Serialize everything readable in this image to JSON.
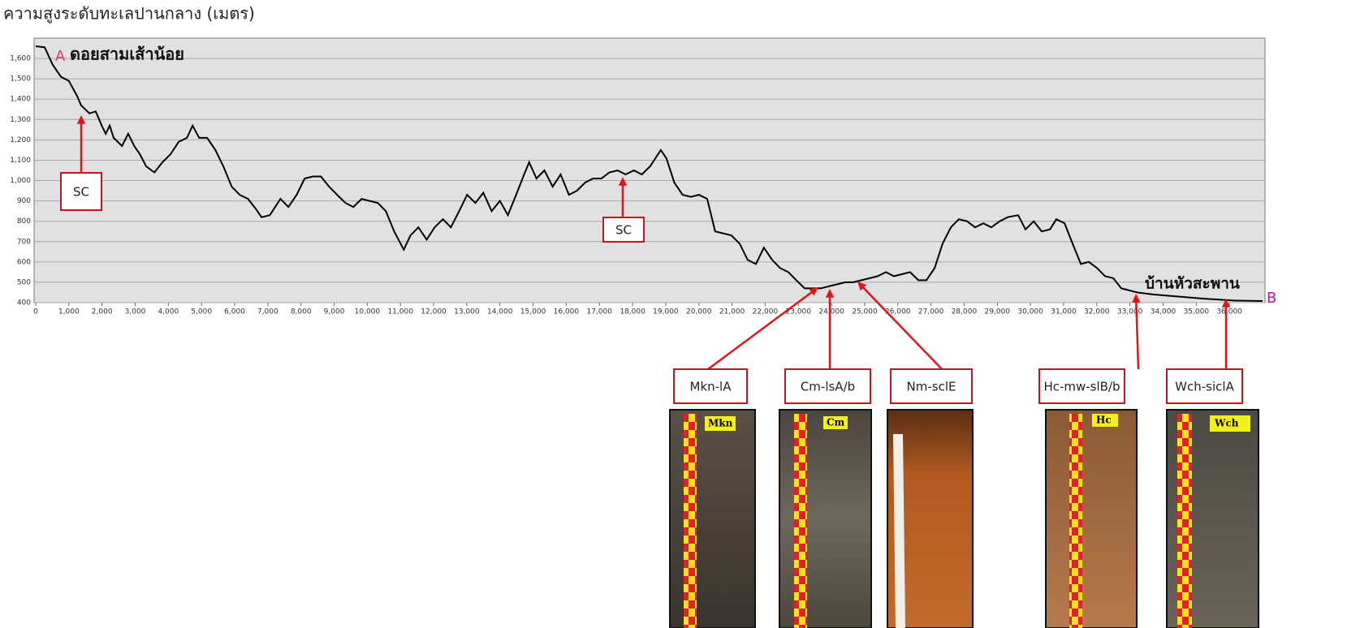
{
  "chart_data": {
    "type": "line",
    "title": "ความสูงระดับทะเลปานกลาง (เมตร)",
    "color": "#000000",
    "grid": true,
    "x": [
      0,
      270,
      510,
      760,
      1000,
      1250,
      1370,
      1620,
      1810,
      1990,
      2110,
      2230,
      2350,
      2600,
      2790,
      2970,
      3140,
      3330,
      3580,
      3820,
      4070,
      4310,
      4560,
      4730,
      4930,
      5170,
      5420,
      5660,
      5910,
      6150,
      6400,
      6640,
      6810,
      7060,
      7380,
      7620,
      7870,
      8110,
      8360,
      8600,
      8850,
      9090,
      9340,
      9580,
      9830,
      10070,
      10320,
      10560,
      10810,
      11100,
      11300,
      11540,
      11790,
      12030,
      12280,
      12520,
      12770,
      13010,
      13260,
      13500,
      13750,
      14000,
      14240,
      14490,
      14730,
      14880,
      15100,
      15340,
      15590,
      15830,
      16080,
      16320,
      16570,
      16810,
      17060,
      17300,
      17550,
      17790,
      18040,
      18280,
      18530,
      18850,
      19020,
      19260,
      19510,
      19760,
      20000,
      20250,
      20490,
      20740,
      20980,
      21230,
      21470,
      21720,
      21960,
      22210,
      22450,
      22700,
      22940,
      23190,
      23430,
      23680,
      23920,
      24170,
      24410,
      24660,
      24900,
      25150,
      25390,
      25640,
      25880,
      26130,
      26370,
      26620,
      26860,
      27110,
      27350,
      27600,
      27840,
      28090,
      28330,
      28580,
      28820,
      29070,
      29310,
      29630,
      29850,
      30100,
      30340,
      30590,
      30780,
      31030,
      31270,
      31520,
      31760,
      32010,
      32250,
      32500,
      32740,
      32990,
      33230,
      33720,
      34460,
      35190,
      36170,
      37000
    ],
    "values": [
      1660,
      1655,
      1570,
      1510,
      1490,
      1415,
      1370,
      1330,
      1340,
      1270,
      1230,
      1270,
      1210,
      1170,
      1230,
      1170,
      1130,
      1070,
      1040,
      1090,
      1130,
      1190,
      1210,
      1270,
      1210,
      1210,
      1150,
      1070,
      970,
      930,
      910,
      860,
      820,
      830,
      910,
      870,
      930,
      1010,
      1020,
      1020,
      970,
      930,
      890,
      870,
      910,
      900,
      890,
      850,
      750,
      660,
      730,
      770,
      710,
      770,
      810,
      770,
      850,
      930,
      890,
      940,
      850,
      900,
      830,
      930,
      1030,
      1090,
      1010,
      1050,
      970,
      1030,
      930,
      950,
      990,
      1010,
      1010,
      1040,
      1050,
      1030,
      1050,
      1030,
      1070,
      1150,
      1110,
      990,
      930,
      920,
      930,
      910,
      750,
      740,
      730,
      690,
      610,
      590,
      670,
      610,
      570,
      550,
      510,
      470,
      470,
      470,
      480,
      490,
      500,
      500,
      510,
      520,
      530,
      550,
      530,
      540,
      550,
      510,
      510,
      570,
      690,
      770,
      810,
      800,
      770,
      790,
      770,
      800,
      820,
      830,
      760,
      800,
      750,
      760,
      810,
      790,
      690,
      590,
      600,
      570,
      530,
      520,
      470,
      460,
      450,
      440,
      430,
      420,
      410,
      408
    ],
    "xlim": [
      0,
      37000
    ],
    "ylim": [
      400,
      1700
    ],
    "xticks": [
      0,
      {
        "value": 1000,
        "label": "1,000"
      },
      {
        "value": 2000,
        "label": "2,000"
      },
      {
        "value": 3000,
        "label": "3,000"
      },
      {
        "value": 4000,
        "label": "4,000"
      },
      {
        "value": 5000,
        "label": "5,000"
      },
      {
        "value": 6000,
        "label": "6,000"
      },
      {
        "value": 7000,
        "label": "7,000"
      },
      {
        "value": 8000,
        "label": "8,000"
      },
      {
        "value": 9000,
        "label": "9,000"
      },
      {
        "value": 10000,
        "label": "10,000"
      },
      {
        "value": 11000,
        "label": "11,000"
      },
      {
        "value": 12000,
        "label": "12,000"
      },
      {
        "value": 13000,
        "label": "13,000"
      },
      {
        "value": 14000,
        "label": "14,000"
      },
      {
        "value": 15000,
        "label": "15,000"
      },
      {
        "value": 16000,
        "label": "16,000"
      },
      {
        "value": 17000,
        "label": "17,000"
      },
      {
        "value": 18000,
        "label": "18,000"
      },
      {
        "value": 19000,
        "label": "19,000"
      },
      {
        "value": 20000,
        "label": "20,000"
      },
      {
        "value": 21000,
        "label": "21,000"
      },
      {
        "value": 22000,
        "label": "22,000"
      },
      {
        "value": 23000,
        "label": "23,000"
      },
      {
        "value": 24000,
        "label": "24,000"
      },
      {
        "value": 25000,
        "label": "25,000"
      },
      {
        "value": 26000,
        "label": "26,000"
      },
      {
        "value": 27000,
        "label": "27,000"
      },
      {
        "value": 28000,
        "label": "28,000"
      },
      {
        "value": 29000,
        "label": "29,000"
      },
      {
        "value": 30000,
        "label": "30,000"
      },
      {
        "value": 31000,
        "label": "31,000"
      },
      {
        "value": 32000,
        "label": "32,000"
      },
      {
        "value": 33000,
        "label": "33,000"
      },
      {
        "value": 34000,
        "label": "34,000"
      },
      {
        "value": 35000,
        "label": "35,000"
      },
      {
        "value": 36000,
        "label": "36,000"
      }
    ],
    "yticks": [
      400,
      500,
      600,
      700,
      800,
      900,
      {
        "value": 1000,
        "label": "1,000"
      },
      {
        "value": 1100,
        "label": "1,100"
      },
      {
        "value": 1200,
        "label": "1,200"
      },
      {
        "value": 1300,
        "label": "1,300"
      },
      {
        "value": 1400,
        "label": "1,400"
      },
      {
        "value": 1500,
        "label": "1,500"
      },
      {
        "value": 1600,
        "label": "1,600"
      }
    ],
    "start_letter": "A",
    "start_name": "ดอยสามเส้าน้อย",
    "end_letter": "B",
    "end_name": "บ้านหัวสะพาน",
    "annotations": [
      "SC",
      "SC",
      "Mkn-lA",
      "Cm-lsA/b",
      "Nm-sclE",
      "Hc-mw-slB/b",
      "Wch-siclA"
    ]
  },
  "photo_tags": [
    "Mkn",
    "Cm",
    "Hc",
    "Wch"
  ]
}
